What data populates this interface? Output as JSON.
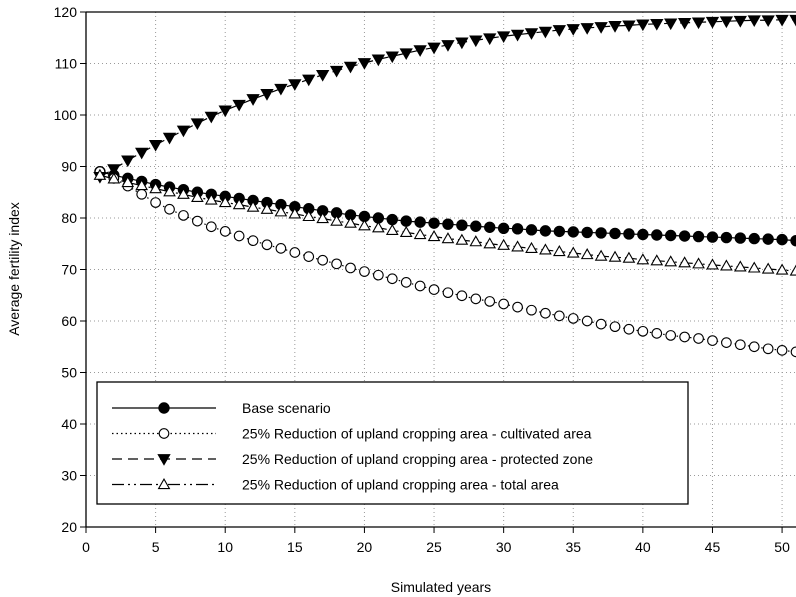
{
  "chart_data": {
    "type": "line",
    "title": "",
    "xlabel": "Simulated years",
    "ylabel": "Average fertility index",
    "xlim": [
      0,
      51
    ],
    "ylim": [
      20,
      120
    ],
    "xticks": [
      "0",
      "5",
      "10",
      "15",
      "20",
      "25",
      "30",
      "35",
      "40",
      "45",
      "50"
    ],
    "yticks": [
      "20",
      "30",
      "40",
      "50",
      "60",
      "70",
      "80",
      "90",
      "100",
      "110",
      "120"
    ],
    "grid": true,
    "legend_position": "bottom-left",
    "series": [
      {
        "name": "Base scenario",
        "line": "solid",
        "marker": "filled-circle",
        "x": [
          1,
          2,
          3,
          4,
          5,
          6,
          7,
          8,
          9,
          10,
          11,
          12,
          13,
          14,
          15,
          16,
          17,
          18,
          19,
          20,
          21,
          22,
          23,
          24,
          25,
          26,
          27,
          28,
          29,
          30,
          31,
          32,
          33,
          34,
          35,
          36,
          37,
          38,
          39,
          40,
          41,
          42,
          43,
          44,
          45,
          46,
          47,
          48,
          49,
          50,
          51
        ],
        "y": [
          89.0,
          88.3,
          87.7,
          87.1,
          86.5,
          86.0,
          85.5,
          85.0,
          84.6,
          84.2,
          83.8,
          83.4,
          83.0,
          82.6,
          82.2,
          81.8,
          81.4,
          81.0,
          80.6,
          80.3,
          80.0,
          79.7,
          79.4,
          79.2,
          79.0,
          78.8,
          78.6,
          78.4,
          78.2,
          78.0,
          77.9,
          77.7,
          77.5,
          77.4,
          77.3,
          77.2,
          77.1,
          77.0,
          76.9,
          76.8,
          76.7,
          76.6,
          76.5,
          76.4,
          76.3,
          76.2,
          76.1,
          76.0,
          75.9,
          75.8,
          75.6
        ]
      },
      {
        "name": "25% Reduction of upland cropping area - cultivated area",
        "line": "dotted",
        "marker": "open-circle",
        "x": [
          1,
          2,
          3,
          4,
          5,
          6,
          7,
          8,
          9,
          10,
          11,
          12,
          13,
          14,
          15,
          16,
          17,
          18,
          19,
          20,
          21,
          22,
          23,
          24,
          25,
          26,
          27,
          28,
          29,
          30,
          31,
          32,
          33,
          34,
          35,
          36,
          37,
          38,
          39,
          40,
          41,
          42,
          43,
          44,
          45,
          46,
          47,
          48,
          49,
          50,
          51
        ],
        "y": [
          89.0,
          87.7,
          86.2,
          84.6,
          83.0,
          81.7,
          80.5,
          79.4,
          78.3,
          77.4,
          76.5,
          75.6,
          74.8,
          74.1,
          73.3,
          72.5,
          71.8,
          71.1,
          70.3,
          69.6,
          68.9,
          68.2,
          67.5,
          66.8,
          66.1,
          65.5,
          64.9,
          64.3,
          63.8,
          63.3,
          62.7,
          62.1,
          61.5,
          61.0,
          60.5,
          60.0,
          59.4,
          58.9,
          58.4,
          58.0,
          57.6,
          57.2,
          56.9,
          56.6,
          56.2,
          55.8,
          55.4,
          55.0,
          54.6,
          54.3,
          54.0
        ]
      },
      {
        "name": "25% Reduction of upland cropping area - protected zone",
        "line": "dashed",
        "marker": "filled-triangle-down",
        "x": [
          1,
          2,
          3,
          4,
          5,
          6,
          7,
          8,
          9,
          10,
          11,
          12,
          13,
          14,
          15,
          16,
          17,
          18,
          19,
          20,
          21,
          22,
          23,
          24,
          25,
          26,
          27,
          28,
          29,
          30,
          31,
          32,
          33,
          34,
          35,
          36,
          37,
          38,
          39,
          40,
          41,
          42,
          43,
          44,
          45,
          46,
          47,
          48,
          49,
          50,
          51
        ],
        "y": [
          88.0,
          89.5,
          91.2,
          92.7,
          94.2,
          95.6,
          97.0,
          98.4,
          99.7,
          100.9,
          102.0,
          103.1,
          104.1,
          105.1,
          106.0,
          106.9,
          107.8,
          108.6,
          109.4,
          110.1,
          110.8,
          111.4,
          112.0,
          112.6,
          113.1,
          113.6,
          114.1,
          114.5,
          114.9,
          115.3,
          115.6,
          115.9,
          116.2,
          116.5,
          116.7,
          116.9,
          117.1,
          117.3,
          117.4,
          117.6,
          117.7,
          117.8,
          117.9,
          118.0,
          118.1,
          118.2,
          118.3,
          118.4,
          118.4,
          118.5,
          118.5
        ]
      },
      {
        "name": "25% Reduction of upland cropping area - total area",
        "line": "dash-dot-dot",
        "marker": "open-triangle-up",
        "x": [
          1,
          2,
          3,
          4,
          5,
          6,
          7,
          8,
          9,
          10,
          11,
          12,
          13,
          14,
          15,
          16,
          17,
          18,
          19,
          20,
          21,
          22,
          23,
          24,
          25,
          26,
          27,
          28,
          29,
          30,
          31,
          32,
          33,
          34,
          35,
          36,
          37,
          38,
          39,
          40,
          41,
          42,
          43,
          44,
          45,
          46,
          47,
          48,
          49,
          50,
          51
        ],
        "y": [
          88.3,
          87.6,
          86.9,
          86.3,
          85.7,
          85.1,
          84.6,
          84.0,
          83.5,
          83.0,
          82.6,
          82.1,
          81.7,
          81.2,
          80.8,
          80.3,
          79.9,
          79.4,
          79.0,
          78.5,
          78.1,
          77.6,
          77.2,
          76.8,
          76.4,
          76.0,
          75.7,
          75.4,
          75.0,
          74.7,
          74.4,
          74.1,
          73.8,
          73.5,
          73.2,
          72.9,
          72.6,
          72.4,
          72.2,
          71.9,
          71.7,
          71.5,
          71.3,
          71.1,
          70.9,
          70.7,
          70.5,
          70.3,
          70.1,
          69.9,
          69.7
        ]
      }
    ]
  }
}
